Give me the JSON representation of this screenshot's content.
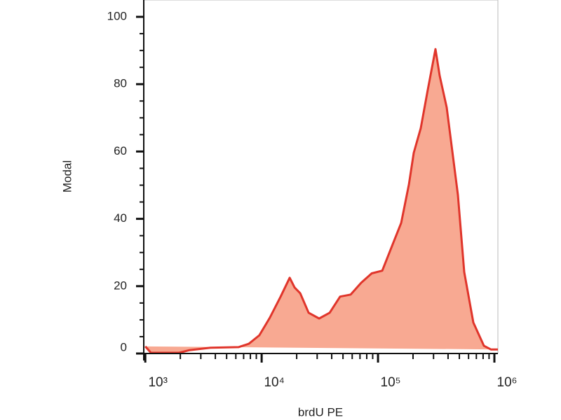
{
  "chart_data": {
    "type": "area",
    "x_label": "brdU PE",
    "y_label": "Modal",
    "xscale": "log",
    "xlim": [
      970,
      1072000
    ],
    "ylim": [
      0,
      105
    ],
    "xticks": [
      {
        "value": 1000,
        "label": "10³"
      },
      {
        "value": 10000,
        "label": "10⁴"
      },
      {
        "value": 100000,
        "label": "10⁵"
      },
      {
        "value": 1000000,
        "label": "10⁶"
      }
    ],
    "xminorticks": [
      2000,
      3000,
      4000,
      5000,
      6000,
      7000,
      8000,
      9000,
      20000,
      30000,
      40000,
      50000,
      60000,
      70000,
      80000,
      90000,
      200000,
      300000,
      400000,
      500000,
      600000,
      700000,
      800000,
      900000
    ],
    "yticks": [
      0,
      20,
      40,
      60,
      80,
      100
    ],
    "yminorticks": [
      5,
      10,
      15,
      25,
      30,
      35,
      45,
      50,
      55,
      65,
      70,
      75,
      85,
      90,
      95
    ],
    "series": [
      {
        "color": "#e0352b",
        "fill": "#f8a992",
        "x": [
          1000,
          1117,
          1946,
          2400,
          3630,
          6320,
          7770,
          9550,
          11750,
          14550,
          17420,
          19190,
          21430,
          25330,
          31190,
          38390,
          47260,
          58220,
          71610,
          88250,
          108700,
          133900,
          158200,
          184200,
          202900,
          232900,
          267600,
          311900,
          338800,
          389100,
          486100,
          550800,
          659600,
          812100,
          933300,
          1072000
        ],
        "values": [
          2.1,
          0.2,
          0.2,
          1,
          1.7,
          1.9,
          2.9,
          5.4,
          10.6,
          16.9,
          22.5,
          19.6,
          17.9,
          12.1,
          10.4,
          12.1,
          16.9,
          17.5,
          21,
          23.8,
          24.6,
          32.5,
          38.8,
          50.2,
          59.6,
          66.9,
          78.3,
          90.4,
          82.5,
          73.1,
          47.1,
          24.2,
          9.2,
          2.3,
          1.2,
          1.2
        ]
      }
    ]
  }
}
